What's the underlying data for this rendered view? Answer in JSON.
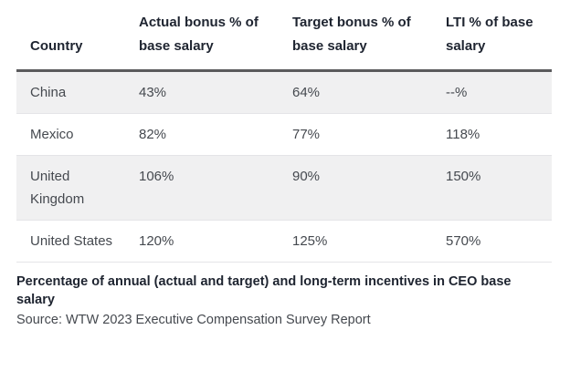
{
  "table": {
    "headers": [
      "Country",
      "Actual bonus % of base salary",
      "Target bonus % of base salary",
      "LTI % of base salary"
    ],
    "rows": [
      {
        "country": "China",
        "actual": "43%",
        "target": "64%",
        "lti": "--%"
      },
      {
        "country": "Mexico",
        "actual": "82%",
        "target": "77%",
        "lti": "118%"
      },
      {
        "country": "United Kingdom",
        "actual": "106%",
        "target": "90%",
        "lti": "150%"
      },
      {
        "country": "United States",
        "actual": "120%",
        "target": "125%",
        "lti": "570%"
      }
    ]
  },
  "caption": {
    "title": "Percentage of annual (actual and target) and long-term incentives in CEO base salary",
    "source": "Source: WTW 2023 Executive Compensation Survey Report"
  },
  "colors": {
    "stripe": "#f0f0f1",
    "header_border": "#5a5a5c",
    "row_divider": "#e4e4e7",
    "heading_text": "#1e2430",
    "body_text": "#45494f",
    "background": "#ffffff"
  },
  "chart_data": {
    "type": "table",
    "title": "Percentage of annual (actual and target) and long-term incentives in CEO base salary",
    "source": "Source: WTW 2023 Executive Compensation Survey Report",
    "columns": [
      "Country",
      "Actual bonus % of base salary",
      "Target bonus % of base salary",
      "LTI % of base salary"
    ],
    "rows": [
      [
        "China",
        43,
        64,
        null
      ],
      [
        "Mexico",
        82,
        77,
        118
      ],
      [
        "United Kingdom",
        106,
        90,
        150
      ],
      [
        "United States",
        120,
        125,
        570
      ]
    ],
    "units": "percent of base salary",
    "notes": "LTI value for China shown as --%"
  }
}
